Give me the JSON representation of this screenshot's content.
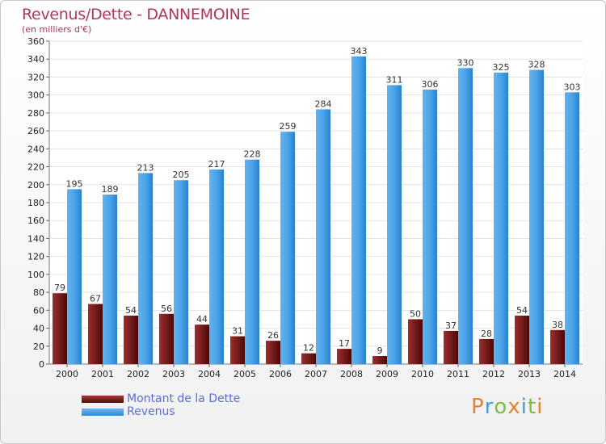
{
  "chart_data": {
    "type": "bar",
    "title": "Revenus/Dette - DANNEMOINE",
    "subtitle": "(en milliers d'€)",
    "categories": [
      "2000",
      "2001",
      "2002",
      "2003",
      "2004",
      "2005",
      "2006",
      "2007",
      "2008",
      "2009",
      "2010",
      "2011",
      "2012",
      "2013",
      "2014"
    ],
    "series": [
      {
        "name": "Montant de la Dette",
        "values": [
          79,
          67,
          54,
          56,
          44,
          31,
          26,
          12,
          17,
          9,
          50,
          37,
          28,
          54,
          38
        ],
        "color": "#7a1c1c"
      },
      {
        "name": "Revenus",
        "values": [
          195,
          189,
          213,
          205,
          217,
          228,
          259,
          284,
          343,
          311,
          306,
          330,
          325,
          328,
          303
        ],
        "color": "#4aa3e8"
      }
    ],
    "ylim": [
      0,
      360
    ],
    "yticks": [
      0,
      20,
      40,
      60,
      80,
      100,
      120,
      140,
      160,
      180,
      200,
      220,
      240,
      260,
      280,
      300,
      320,
      340,
      360
    ],
    "grid": true,
    "legend_position": "bottom-left"
  },
  "logo": {
    "text": "Proxiti",
    "letters": [
      "P",
      "r",
      "o",
      "x",
      "i",
      "t",
      "i"
    ]
  }
}
